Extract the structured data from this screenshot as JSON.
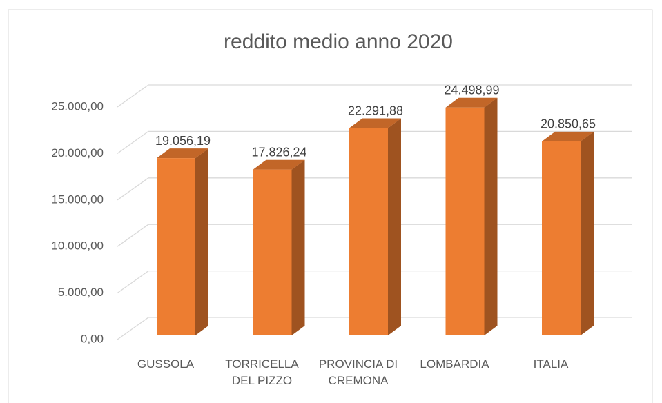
{
  "chart_data": {
    "type": "bar3d",
    "title": "reddito medio anno 2020",
    "categories": [
      "GUSSOLA",
      "TORRICELLA DEL PIZZO",
      "PROVINCIA DI CREMONA",
      "LOMBARDIA",
      "ITALIA"
    ],
    "values": [
      19056.19,
      17826.24,
      22291.88,
      24498.99,
      20850.65
    ],
    "value_labels": [
      "19.056,19",
      "17.826,24",
      "22.291,88",
      "24.498,99",
      "20.850,65"
    ],
    "color": "#ed7d31",
    "ylim": [
      0,
      25000
    ],
    "yticks": [
      {
        "value": 0,
        "label": "0,00"
      },
      {
        "value": 5000,
        "label": "5.000,00"
      },
      {
        "value": 10000,
        "label": "10.000,00"
      },
      {
        "value": 15000,
        "label": "15.000,00"
      },
      {
        "value": 20000,
        "label": "20.000,00"
      },
      {
        "value": 25000,
        "label": "25.000,00"
      }
    ],
    "grid": true
  }
}
